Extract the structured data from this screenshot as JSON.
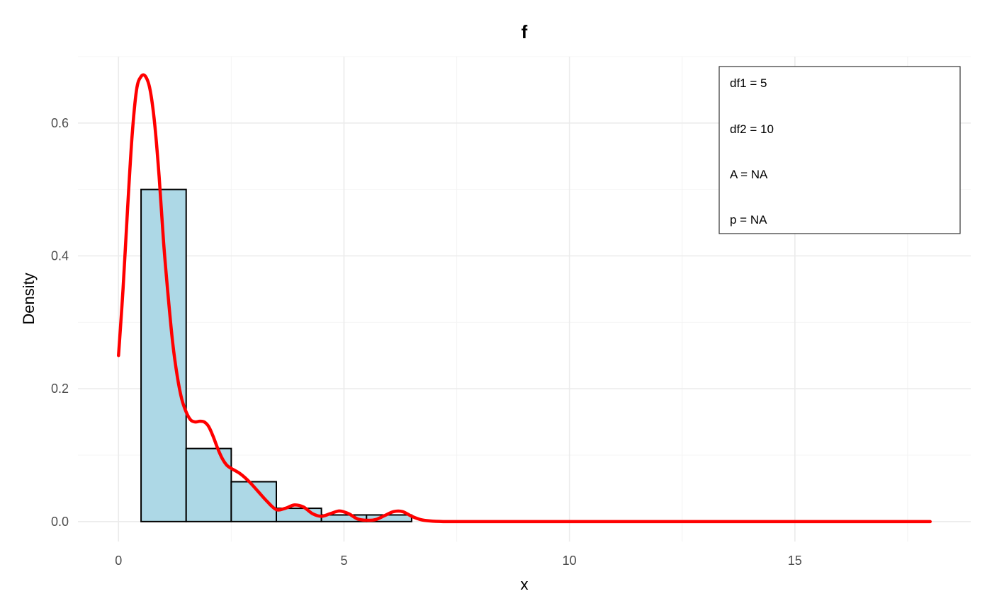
{
  "chart_data": {
    "type": "bar",
    "title": "f",
    "xlabel": "x",
    "ylabel": "Density",
    "xlim": [
      -0.9,
      18.9
    ],
    "ylim": [
      -0.03,
      0.7
    ],
    "x_ticks": [
      0,
      5,
      10,
      15
    ],
    "x_tick_labels": [
      "0",
      "5",
      "10",
      "15"
    ],
    "y_ticks": [
      0.0,
      0.2,
      0.4,
      0.6
    ],
    "y_tick_labels": [
      "0.0",
      "0.2",
      "0.4",
      "0.6"
    ],
    "grid": true,
    "histogram": {
      "bin_edges": [
        0.5,
        1.5,
        2.5,
        3.5,
        4.5,
        5.5,
        6.5
      ],
      "values": [
        0.5,
        0.11,
        0.06,
        0.02,
        0.01,
        0.01
      ],
      "fill": "#add8e6",
      "edge_color": "#000000"
    },
    "density_curve": {
      "color": "#ff0000",
      "x": [
        0,
        0.1,
        0.2,
        0.3,
        0.4,
        0.5,
        0.6,
        0.7,
        0.8,
        0.9,
        1.0,
        1.1,
        1.2,
        1.3,
        1.4,
        1.5,
        1.6,
        1.7,
        1.8,
        1.9,
        2.0,
        2.1,
        2.2,
        2.3,
        2.4,
        2.5,
        2.7,
        2.9,
        3.1,
        3.3,
        3.5,
        3.7,
        3.9,
        4.1,
        4.3,
        4.5,
        4.7,
        4.9,
        5.1,
        5.3,
        5.5,
        5.7,
        5.9,
        6.1,
        6.3,
        6.5,
        6.7,
        6.9,
        7.2,
        7.6,
        8.0,
        9.0,
        10.0,
        12.0,
        14.0,
        16.0,
        18.0
      ],
      "y": [
        0.25,
        0.35,
        0.47,
        0.58,
        0.65,
        0.67,
        0.67,
        0.65,
        0.6,
        0.52,
        0.42,
        0.34,
        0.27,
        0.22,
        0.185,
        0.165,
        0.153,
        0.15,
        0.151,
        0.15,
        0.143,
        0.128,
        0.11,
        0.095,
        0.085,
        0.08,
        0.072,
        0.06,
        0.045,
        0.03,
        0.018,
        0.02,
        0.025,
        0.022,
        0.012,
        0.008,
        0.012,
        0.016,
        0.012,
        0.004,
        0.002,
        0.003,
        0.009,
        0.015,
        0.015,
        0.008,
        0.003,
        0.001,
        0.0,
        0.0,
        0.0,
        0.0,
        0.0,
        0.0,
        0.0,
        0.0,
        0.0
      ]
    },
    "annotation_lines": [
      "df1 = 5",
      "df2 = 10",
      "A = NA",
      "p = NA"
    ]
  }
}
